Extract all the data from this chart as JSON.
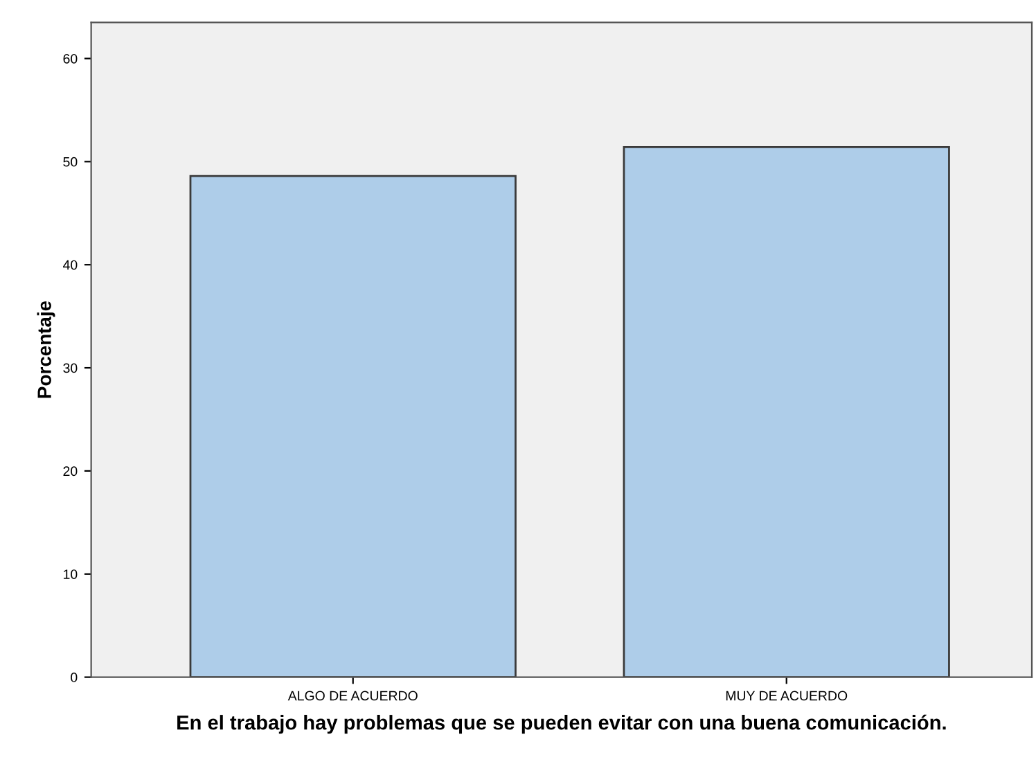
{
  "chart_data": {
    "type": "bar",
    "xlabel": "En el trabajo hay problemas que se pueden evitar con una buena comunicación.",
    "ylabel": "Porcentaje",
    "categories": [
      "ALGO DE ACUERDO",
      "MUY DE ACUERDO"
    ],
    "values": [
      48.6,
      51.4
    ],
    "color": "#aecde9",
    "ylim": [
      0,
      63.5
    ],
    "yticks": [
      0,
      10,
      20,
      30,
      40,
      50,
      60
    ],
    "grid": false
  }
}
